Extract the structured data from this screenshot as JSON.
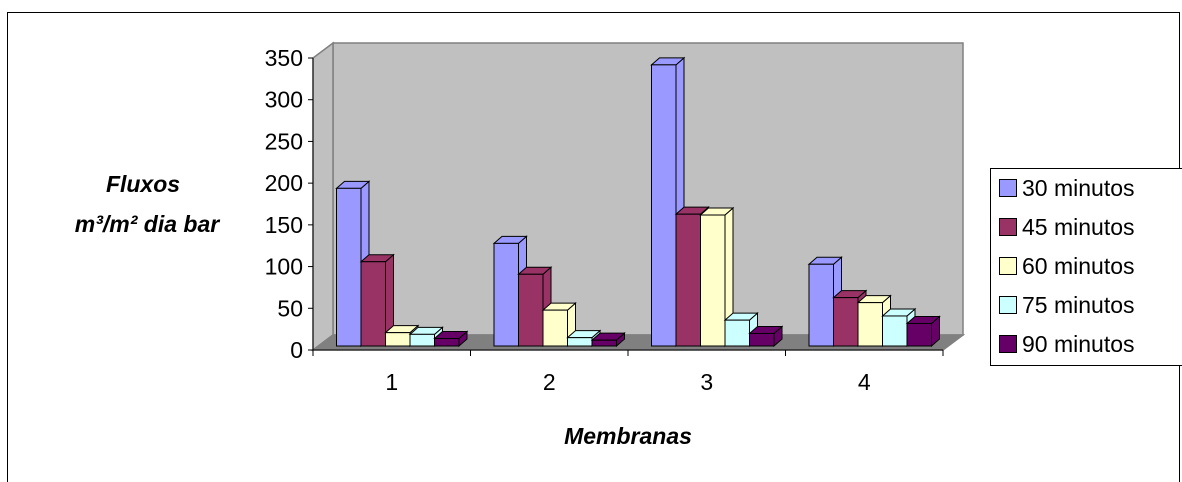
{
  "chart_data": {
    "type": "bar",
    "style": "3d-clustered-column",
    "categories": [
      "1",
      "2",
      "3",
      "4"
    ],
    "series": [
      {
        "name": "30 minutos",
        "values": [
          189,
          123,
          337,
          98
        ],
        "color": "#9999ff"
      },
      {
        "name": "45 minutos",
        "values": [
          101,
          86,
          158,
          58
        ],
        "color": "#993366"
      },
      {
        "name": "60 minutos",
        "values": [
          16,
          43,
          157,
          52
        ],
        "color": "#ffffcc"
      },
      {
        "name": "75 minutos",
        "values": [
          14,
          10,
          31,
          36
        ],
        "color": "#ccffff"
      },
      {
        "name": "90 minutos",
        "values": [
          9,
          7,
          15,
          27
        ],
        "color": "#660066"
      }
    ],
    "ylabel_line1": "Fluxos",
    "ylabel_line2": "m³/m² dia bar",
    "xlabel": "Membranas",
    "ylim": [
      0,
      350
    ],
    "yticks": [
      "0",
      "50",
      "100",
      "150",
      "200",
      "250",
      "300",
      "350"
    ],
    "wall_color": "#c0c0c0",
    "floor_color": "#808080",
    "legend_position": "right",
    "grid": false
  }
}
